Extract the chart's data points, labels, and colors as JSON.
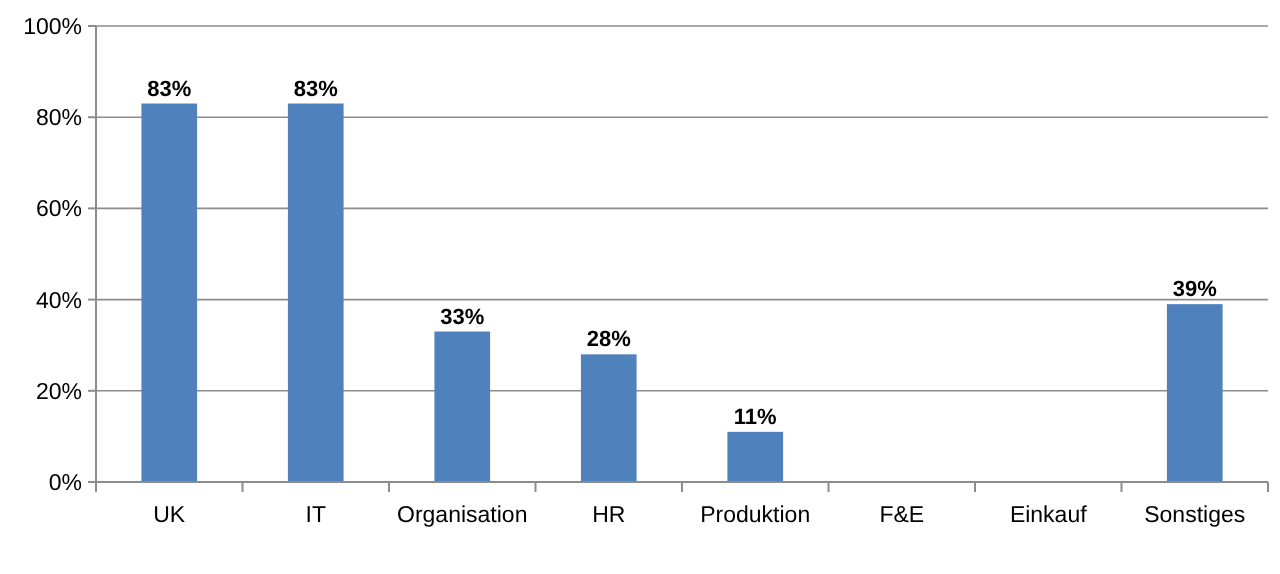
{
  "chart_data": {
    "type": "bar",
    "categories": [
      "UK",
      "IT",
      "Organisation",
      "HR",
      "Produktion",
      "F&E",
      "Einkauf",
      "Sonstiges"
    ],
    "values": [
      83,
      83,
      33,
      28,
      11,
      0,
      0,
      39
    ],
    "value_labels": [
      "83%",
      "83%",
      "33%",
      "28%",
      "11%",
      null,
      null,
      "39%"
    ],
    "color": "#4f81bd",
    "ylim": [
      0,
      100
    ],
    "yticks": [
      {
        "value": 0,
        "label": "0%"
      },
      {
        "value": 20,
        "label": "20%"
      },
      {
        "value": 40,
        "label": "40%"
      },
      {
        "value": 60,
        "label": "60%"
      },
      {
        "value": 80,
        "label": "80%"
      },
      {
        "value": 100,
        "label": "100%"
      }
    ],
    "grid": "y"
  }
}
